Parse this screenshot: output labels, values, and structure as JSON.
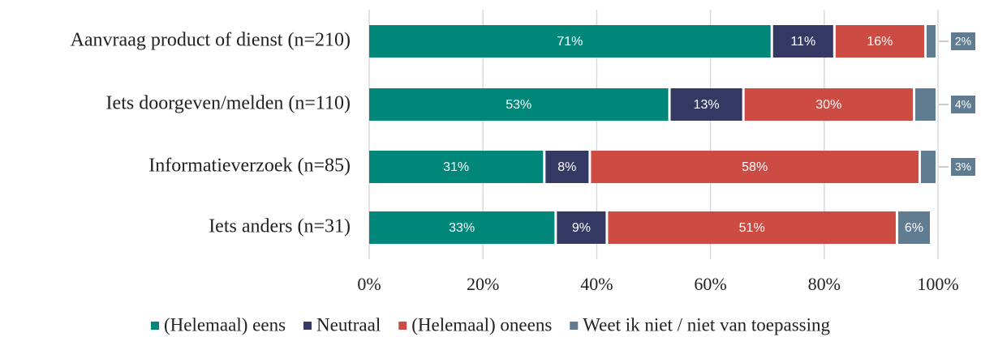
{
  "chart_data": {
    "type": "stacked-barh",
    "categories": [
      "Aanvraag product of dienst (n=210)",
      "Iets doorgeven/melden (n=110)",
      "Informatieverzoek (n=85)",
      "Iets anders (n=31)"
    ],
    "series": [
      {
        "name": "(Helemaal) eens",
        "color": "#00877a",
        "values": [
          71,
          53,
          31,
          33
        ],
        "value_labels": [
          "71%",
          "53%",
          "31%",
          "33%"
        ]
      },
      {
        "name": "Neutraal",
        "color": "#343863",
        "values": [
          11,
          13,
          8,
          9
        ],
        "value_labels": [
          "11%",
          "13%",
          "8%",
          "9%"
        ]
      },
      {
        "name": "(Helemaal) oneens",
        "color": "#cc4b43",
        "values": [
          16,
          30,
          58,
          51
        ],
        "value_labels": [
          "16%",
          "30%",
          "58%",
          "51%"
        ]
      },
      {
        "name": "Weet ik niet / niet van toepassing",
        "color": "#5f7c90",
        "values": [
          2,
          4,
          3,
          6
        ],
        "value_labels": [
          "2%",
          "4%",
          "3%",
          "6%"
        ]
      }
    ],
    "xlim": [
      0,
      100
    ],
    "xticks": [
      {
        "value": 0,
        "label": "0%"
      },
      {
        "value": 20,
        "label": "20%"
      },
      {
        "value": 40,
        "label": "40%"
      },
      {
        "value": 60,
        "label": "60%"
      },
      {
        "value": 80,
        "label": "80%"
      },
      {
        "value": 100,
        "label": "100%"
      }
    ],
    "grid": true,
    "legend": "bottom"
  }
}
